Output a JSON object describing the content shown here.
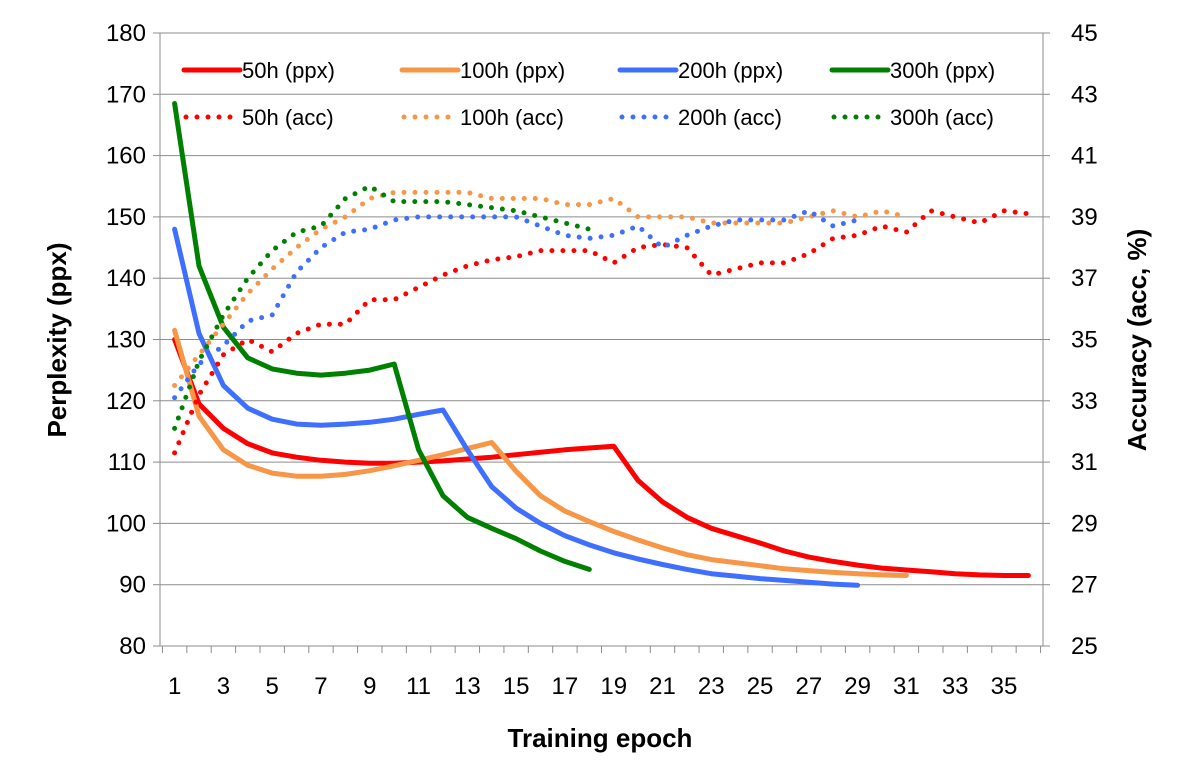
{
  "chart_data": {
    "type": "line",
    "title": "",
    "xlabel": "Training epoch",
    "ylabel": "Perplexity (ppx)",
    "y2label": "Accuracy (acc, %)",
    "xlim": [
      0.4,
      36.6
    ],
    "ylim": [
      80,
      180
    ],
    "y2lim": [
      25,
      45
    ],
    "x_ticks": [
      1,
      3,
      5,
      7,
      9,
      11,
      13,
      15,
      17,
      19,
      21,
      23,
      25,
      27,
      29,
      31,
      33,
      35
    ],
    "y_ticks": [
      80,
      90,
      100,
      110,
      120,
      130,
      140,
      150,
      160,
      170,
      180
    ],
    "y2_ticks": [
      25,
      27,
      29,
      31,
      33,
      35,
      37,
      39,
      41,
      43,
      45
    ],
    "grid": "horizontal",
    "legend": "top",
    "series": [
      {
        "name": "50h (ppx)",
        "axis": "left",
        "style": "solid",
        "color": "#ff0000",
        "x": [
          1,
          2,
          3,
          4,
          5,
          6,
          7,
          8,
          9,
          10,
          11,
          12,
          13,
          14,
          15,
          16,
          17,
          18,
          19,
          20,
          21,
          22,
          23,
          24,
          25,
          26,
          27,
          28,
          29,
          30,
          31,
          32,
          33,
          34,
          35,
          36
        ],
        "values": [
          130,
          119.5,
          115.5,
          113,
          111.5,
          110.8,
          110.3,
          110,
          109.8,
          109.8,
          110,
          110.2,
          110.5,
          110.8,
          111.2,
          111.6,
          112,
          112.3,
          112.6,
          107,
          103.5,
          101,
          99.2,
          98,
          96.8,
          95.5,
          94.5,
          93.8,
          93.2,
          92.7,
          92.4,
          92.1,
          91.8,
          91.6,
          91.5,
          91.5
        ]
      },
      {
        "name": "100h (ppx)",
        "axis": "left",
        "style": "solid",
        "color": "#f79646",
        "x": [
          1,
          2,
          3,
          4,
          5,
          6,
          7,
          8,
          9,
          10,
          11,
          12,
          13,
          14,
          15,
          16,
          17,
          18,
          19,
          20,
          21,
          22,
          23,
          24,
          25,
          26,
          27,
          28,
          29,
          30,
          31
        ],
        "values": [
          131.5,
          117.5,
          112,
          109.5,
          108.2,
          107.7,
          107.7,
          108,
          108.6,
          109.4,
          110.3,
          111.2,
          112.2,
          113.2,
          108.5,
          104.5,
          102,
          100.3,
          98.7,
          97.3,
          96,
          94.9,
          94.1,
          93.6,
          93.1,
          92.6,
          92.3,
          92,
          91.8,
          91.6,
          91.5
        ]
      },
      {
        "name": "200h (ppx)",
        "axis": "left",
        "style": "solid",
        "color": "#3f6fff",
        "x": [
          1,
          2,
          3,
          4,
          5,
          6,
          7,
          8,
          9,
          10,
          11,
          12,
          13,
          14,
          15,
          16,
          17,
          18,
          19,
          20,
          21,
          22,
          23,
          24,
          25,
          26,
          27,
          28,
          29
        ],
        "values": [
          148,
          131,
          122.5,
          118.8,
          117,
          116.2,
          116,
          116.2,
          116.5,
          117,
          117.8,
          118.5,
          112,
          106,
          102.5,
          100,
          98,
          96.5,
          95.2,
          94.2,
          93.3,
          92.5,
          91.8,
          91.4,
          91,
          90.7,
          90.4,
          90.1,
          89.9
        ]
      },
      {
        "name": "300h (ppx)",
        "axis": "left",
        "style": "solid",
        "color": "#008000",
        "x": [
          1,
          2,
          3,
          4,
          5,
          6,
          7,
          8,
          9,
          10,
          11,
          12,
          13,
          14,
          15,
          16,
          17,
          18
        ],
        "values": [
          168.5,
          142,
          132,
          127,
          125.2,
          124.5,
          124.2,
          124.5,
          125,
          126,
          112,
          104.5,
          101,
          99.2,
          97.5,
          95.5,
          93.8,
          92.5
        ]
      },
      {
        "name": "50h (acc)",
        "axis": "right",
        "style": "dotted",
        "color": "#ff0000",
        "x": [
          1,
          2,
          3,
          4,
          5,
          6,
          7,
          8,
          9,
          10,
          11,
          12,
          13,
          14,
          15,
          16,
          17,
          18,
          19,
          20,
          21,
          22,
          23,
          24,
          25,
          26,
          27,
          28,
          29,
          30,
          31,
          32,
          33,
          34,
          35,
          36
        ],
        "values": [
          31.3,
          33.2,
          34.5,
          35,
          34.6,
          35.2,
          35.5,
          35.5,
          36.3,
          36.3,
          36.7,
          37.1,
          37.4,
          37.6,
          37.7,
          37.9,
          37.9,
          37.9,
          37.5,
          38,
          38.1,
          38,
          37.1,
          37.3,
          37.5,
          37.5,
          37.8,
          38.3,
          38.4,
          38.7,
          38.5,
          39.2,
          39,
          38.8,
          39.2,
          39.1
        ]
      },
      {
        "name": "100h (acc)",
        "axis": "right",
        "style": "dotted",
        "color": "#f79646",
        "x": [
          1,
          2,
          3,
          4,
          5,
          6,
          7,
          8,
          9,
          10,
          11,
          12,
          13,
          14,
          15,
          16,
          17,
          18,
          19,
          20,
          21,
          22,
          23,
          24,
          25,
          26,
          27,
          28,
          29,
          30,
          31
        ],
        "values": [
          33.5,
          34.5,
          35.5,
          36.5,
          37.3,
          38,
          38.6,
          39,
          39.6,
          39.8,
          39.8,
          39.8,
          39.8,
          39.6,
          39.6,
          39.6,
          39.4,
          39.4,
          39.6,
          39,
          39,
          39,
          38.8,
          38.8,
          38.8,
          38.8,
          39,
          39.2,
          39,
          39.2,
          39
        ]
      },
      {
        "name": "200h (acc)",
        "axis": "right",
        "style": "dotted",
        "color": "#3f6fff",
        "x": [
          1,
          2,
          3,
          4,
          5,
          6,
          7,
          8,
          9,
          10,
          11,
          12,
          13,
          14,
          15,
          16,
          17,
          18,
          19,
          20,
          21,
          22,
          23,
          24,
          25,
          26,
          27,
          28,
          29
        ],
        "values": [
          33.1,
          34.2,
          34.8,
          35.6,
          35.8,
          37.2,
          38,
          38.5,
          38.6,
          38.9,
          39,
          39,
          39,
          39,
          39,
          38.7,
          38.4,
          38.3,
          38.4,
          38.7,
          38,
          38.4,
          38.7,
          38.9,
          38.9,
          38.9,
          39.2,
          38.7,
          38.9
        ]
      },
      {
        "name": "300h (acc)",
        "axis": "right",
        "style": "dotted",
        "color": "#008000",
        "x": [
          1,
          2,
          3,
          4,
          5,
          6,
          7,
          8,
          9,
          10,
          11,
          12,
          13,
          14,
          15,
          16,
          17,
          18
        ],
        "values": [
          32.1,
          34.3,
          35.8,
          37,
          37.9,
          38.5,
          38.7,
          39.6,
          40,
          39.5,
          39.5,
          39.5,
          39.4,
          39.3,
          39.2,
          39,
          38.8,
          38.6
        ]
      }
    ]
  }
}
